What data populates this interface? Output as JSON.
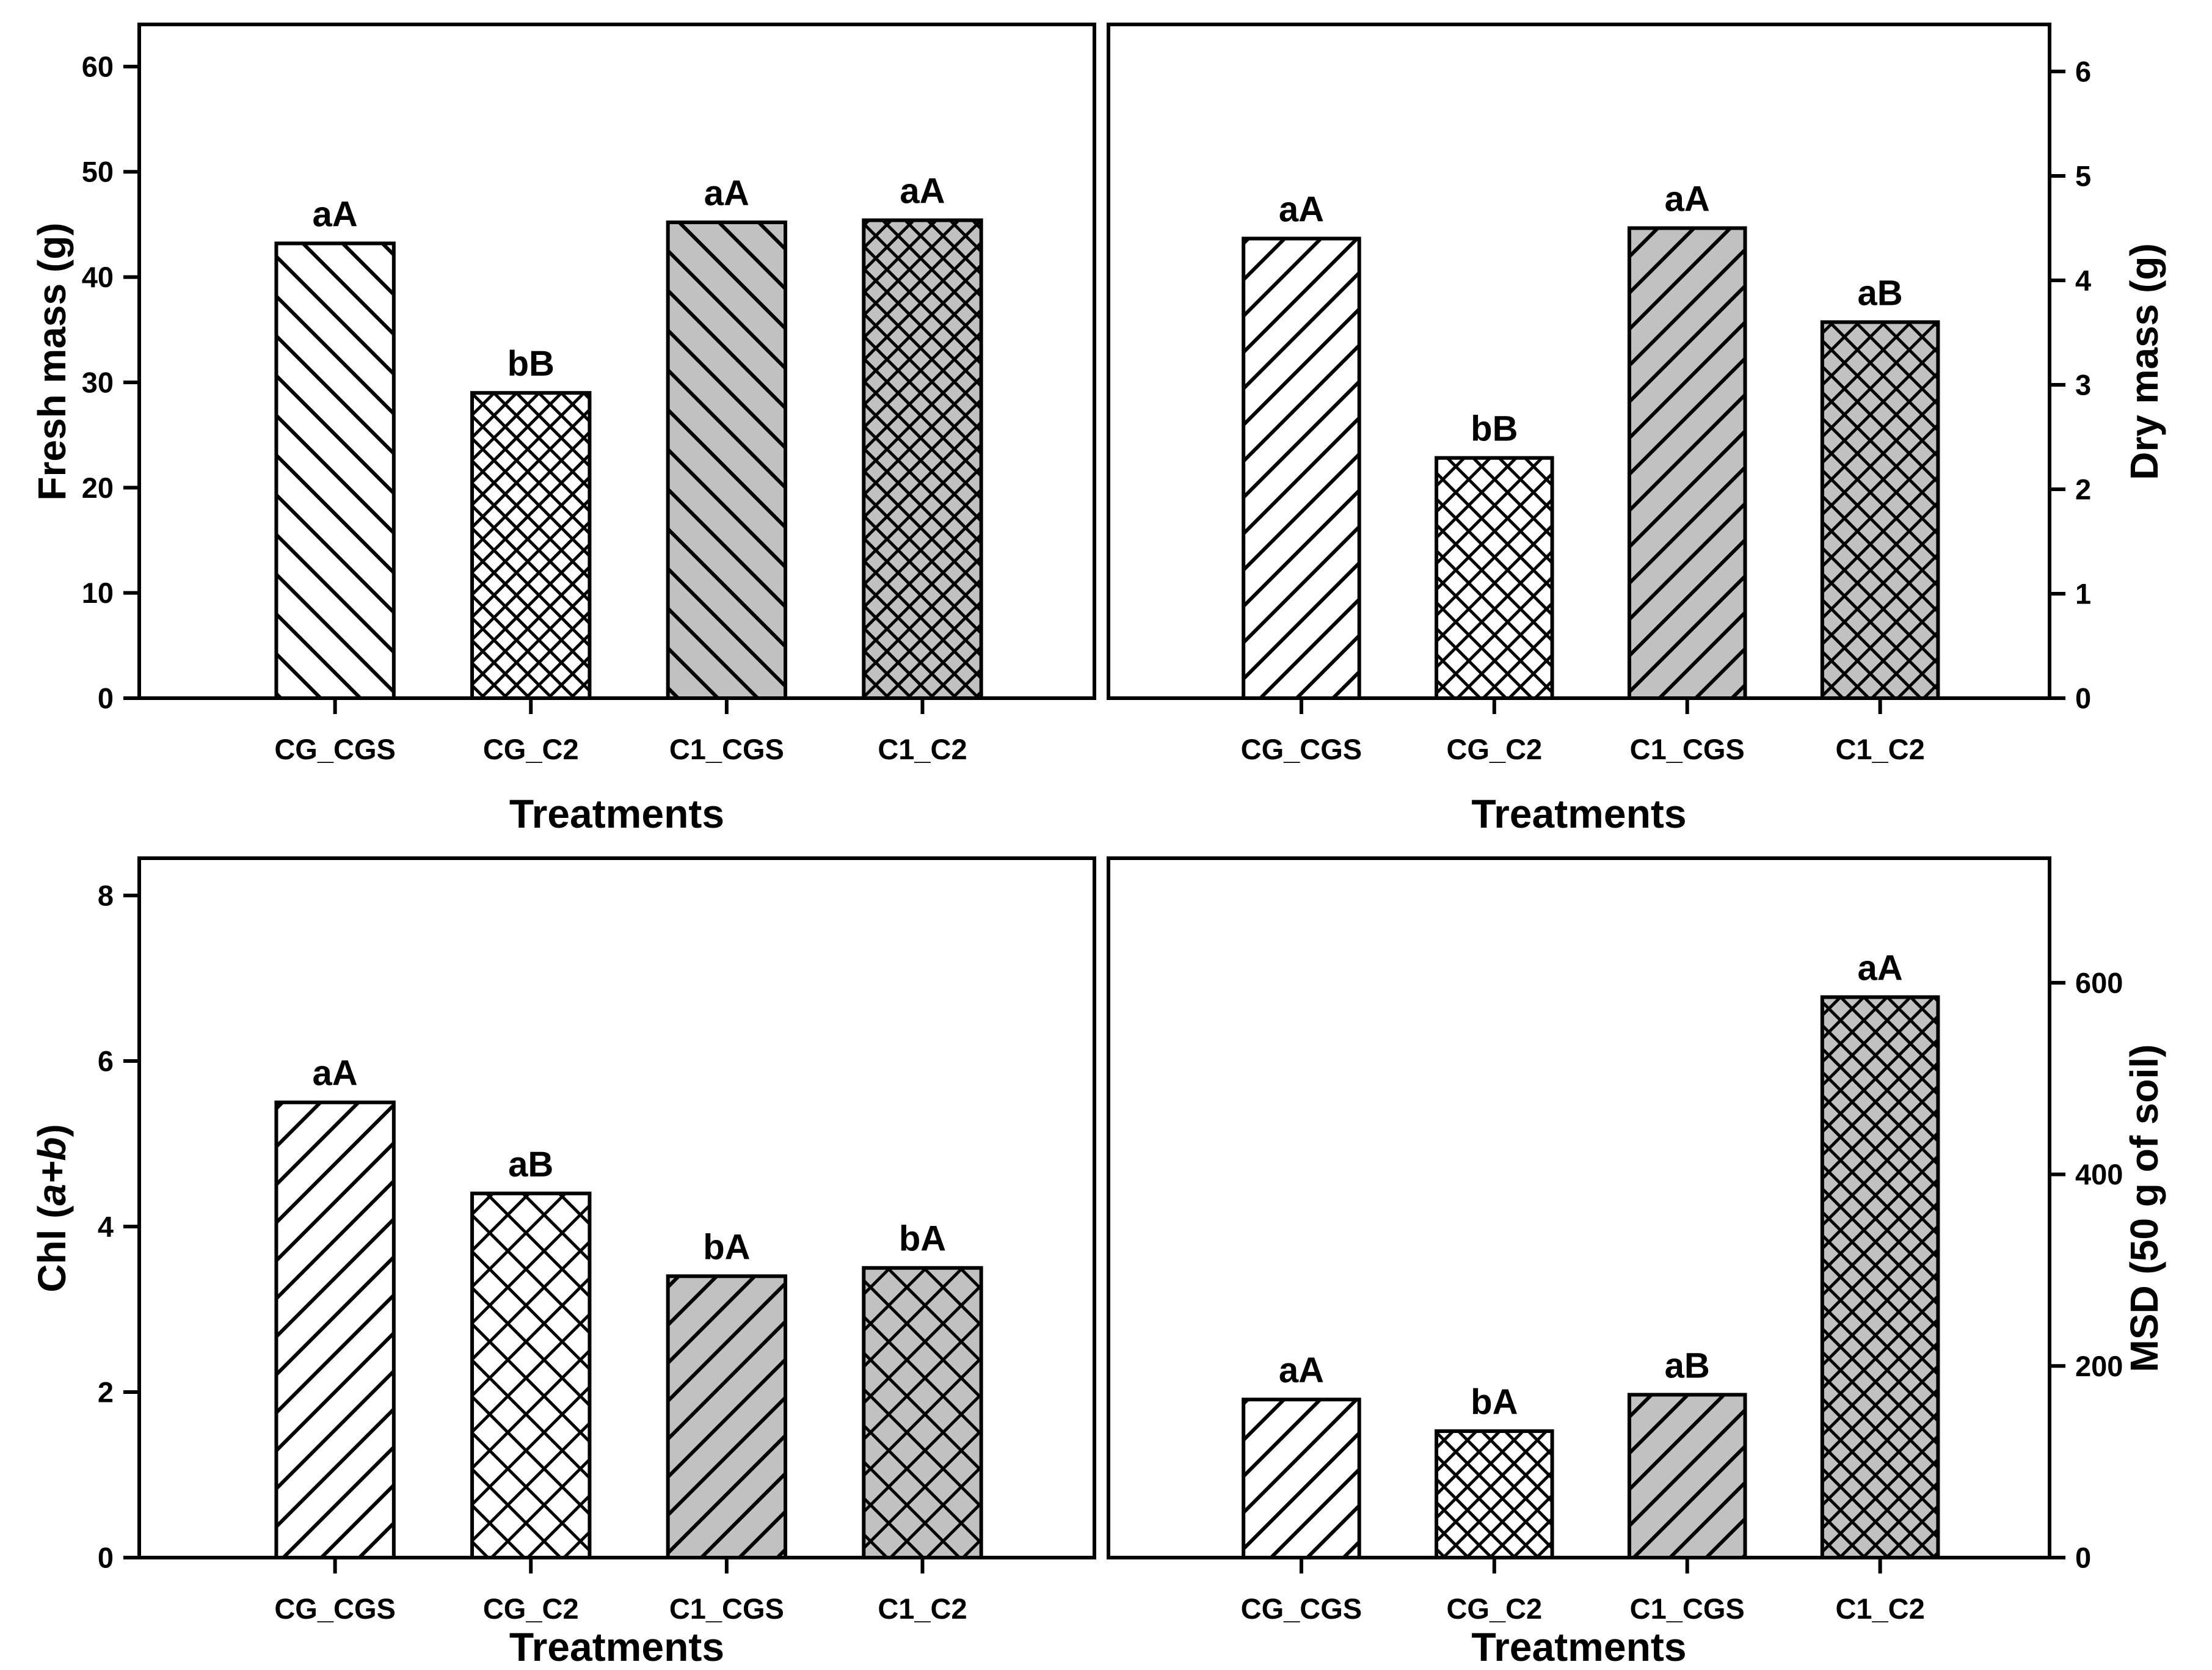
{
  "figure": {
    "background": "#ffffff",
    "colors": {
      "stroke": "#000000",
      "white_fill": "#ffffff",
      "gray_fill": "#c1c1c1",
      "text": "#000000"
    }
  },
  "chart_data": [
    {
      "id": "fresh-mass",
      "type": "bar",
      "position": "top-left",
      "ylabel": "Fresh mass (g)",
      "ylabel_parts": [
        {
          "text": "Fresh mass (g)",
          "italic": false
        }
      ],
      "yaxis_side": "left",
      "xlabel": "Treatments",
      "categories": [
        "CG_CGS",
        "CG_C2",
        "C1_CGS",
        "C1_C2"
      ],
      "values": [
        43.2,
        29.0,
        45.2,
        45.4
      ],
      "sig_letters": [
        "aA",
        "bB",
        "aA",
        "aA"
      ],
      "yticks": [
        0,
        10,
        20,
        30,
        40,
        50,
        60
      ],
      "ylim": [
        0,
        64
      ],
      "grid": false,
      "hatch_direction": "backslash",
      "hatch_spacing": {
        "diag": 46,
        "cross": 26
      },
      "bars": [
        {
          "fill": "#ffffff",
          "hatch": "diag"
        },
        {
          "fill": "#ffffff",
          "hatch": "cross"
        },
        {
          "fill": "#c1c1c1",
          "hatch": "diag"
        },
        {
          "fill": "#c1c1c1",
          "hatch": "cross"
        }
      ]
    },
    {
      "id": "dry-mass",
      "type": "bar",
      "position": "top-right",
      "ylabel": "Dry mass (g)",
      "ylabel_parts": [
        {
          "text": "Dry mass (g)",
          "italic": false
        }
      ],
      "yaxis_side": "right",
      "xlabel": "Treatments",
      "categories": [
        "CG_CGS",
        "CG_C2",
        "C1_CGS",
        "C1_C2"
      ],
      "values": [
        4.4,
        2.3,
        4.5,
        3.6
      ],
      "sig_letters": [
        "aA",
        "bB",
        "aA",
        "aB"
      ],
      "yticks": [
        0,
        1,
        2,
        3,
        4,
        5,
        6
      ],
      "ylim": [
        0,
        6.45
      ],
      "grid": false,
      "hatch_direction": "slash",
      "hatch_spacing": {
        "diag": 42,
        "cross": 30
      },
      "bars": [
        {
          "fill": "#ffffff",
          "hatch": "diag"
        },
        {
          "fill": "#ffffff",
          "hatch": "cross"
        },
        {
          "fill": "#c1c1c1",
          "hatch": "diag"
        },
        {
          "fill": "#c1c1c1",
          "hatch": "cross"
        }
      ]
    },
    {
      "id": "chl-a-b",
      "type": "bar",
      "position": "bottom-left",
      "ylabel": "Chl (a+b)",
      "ylabel_parts": [
        {
          "text": "Chl (",
          "italic": false
        },
        {
          "text": "a+b",
          "italic": true
        },
        {
          "text": ")",
          "italic": false
        }
      ],
      "yaxis_side": "left",
      "xlabel": "Treatments",
      "categories": [
        "CG_CGS",
        "CG_C2",
        "C1_CGS",
        "C1_C2"
      ],
      "values": [
        5.5,
        4.4,
        3.4,
        3.5
      ],
      "sig_letters": [
        "aA",
        "aB",
        "bA",
        "bA"
      ],
      "yticks": [
        0,
        2,
        4,
        6,
        8
      ],
      "ylim": [
        0,
        8.45
      ],
      "grid": false,
      "hatch_direction": "slash",
      "hatch_spacing": {
        "diag": 44,
        "cross": 42
      },
      "bars": [
        {
          "fill": "#ffffff",
          "hatch": "diag"
        },
        {
          "fill": "#ffffff",
          "hatch": "cross"
        },
        {
          "fill": "#c1c1c1",
          "hatch": "diag"
        },
        {
          "fill": "#c1c1c1",
          "hatch": "cross"
        }
      ]
    },
    {
      "id": "msd",
      "type": "bar",
      "position": "bottom-right",
      "ylabel": "MSD (50 g of soil)",
      "ylabel_parts": [
        {
          "text": "MSD (50 g of soil)",
          "italic": false
        }
      ],
      "yaxis_side": "right",
      "xlabel": "Treatments",
      "categories": [
        "CG_CGS",
        "CG_C2",
        "C1_CGS",
        "C1_C2"
      ],
      "values": [
        165,
        132,
        170,
        585
      ],
      "sig_letters": [
        "aA",
        "bA",
        "aB",
        "aA"
      ],
      "yticks": [
        0,
        200,
        400,
        600
      ],
      "ylim": [
        0,
        730
      ],
      "grid": false,
      "hatch_direction": "slash",
      "hatch_spacing": {
        "diag": 42,
        "cross": 27
      },
      "bars": [
        {
          "fill": "#ffffff",
          "hatch": "diag"
        },
        {
          "fill": "#ffffff",
          "hatch": "cross"
        },
        {
          "fill": "#c1c1c1",
          "hatch": "diag"
        },
        {
          "fill": "#c1c1c1",
          "hatch": "cross"
        }
      ]
    }
  ]
}
